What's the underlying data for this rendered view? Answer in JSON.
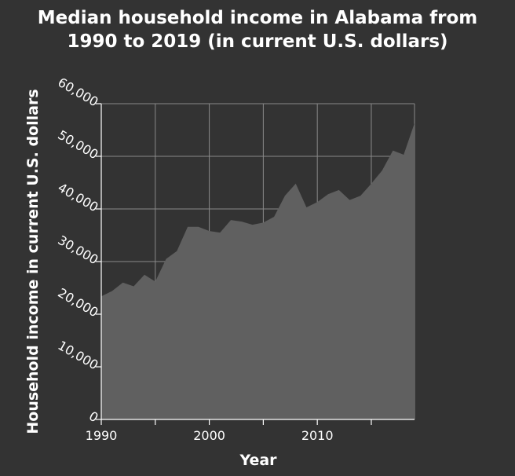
{
  "chart_data": {
    "type": "area",
    "title_lines": [
      "Median household income in Alabama from",
      "1990 to 2019 (in current U.S. dollars)"
    ],
    "xlabel": "Year",
    "ylabel": "Household income in current U.S. dollars",
    "xlim": [
      1990,
      2019
    ],
    "ylim": [
      0,
      60000
    ],
    "x_ticks": [
      1990,
      1995,
      2000,
      2005,
      2010,
      2015
    ],
    "x_tick_labels": [
      "1990",
      "",
      "2000",
      "",
      "2010",
      ""
    ],
    "y_ticks": [
      0,
      10000,
      20000,
      30000,
      40000,
      50000,
      60000
    ],
    "y_tick_labels": [
      "0",
      "10,000",
      "20,000",
      "30,000",
      "40,000",
      "50,000",
      "60,000"
    ],
    "grid": true,
    "colors": {
      "background": "#333333",
      "area_fill": "#606060",
      "grid": "#8a8a8a",
      "text": "#ffffff"
    },
    "x": [
      1990,
      1991,
      1992,
      1993,
      1994,
      1995,
      1996,
      1997,
      1998,
      1999,
      2000,
      2001,
      2002,
      2003,
      2004,
      2005,
      2006,
      2007,
      2008,
      2009,
      2010,
      2011,
      2012,
      2013,
      2014,
      2015,
      2016,
      2017,
      2018,
      2019
    ],
    "values": [
      23400,
      24400,
      26000,
      25300,
      27500,
      26200,
      30500,
      32000,
      36600,
      36600,
      35800,
      35500,
      37900,
      37600,
      37000,
      37400,
      38500,
      42500,
      44800,
      40300,
      41300,
      42800,
      43600,
      41700,
      42500,
      44800,
      47300,
      51100,
      50300,
      56300
    ]
  }
}
